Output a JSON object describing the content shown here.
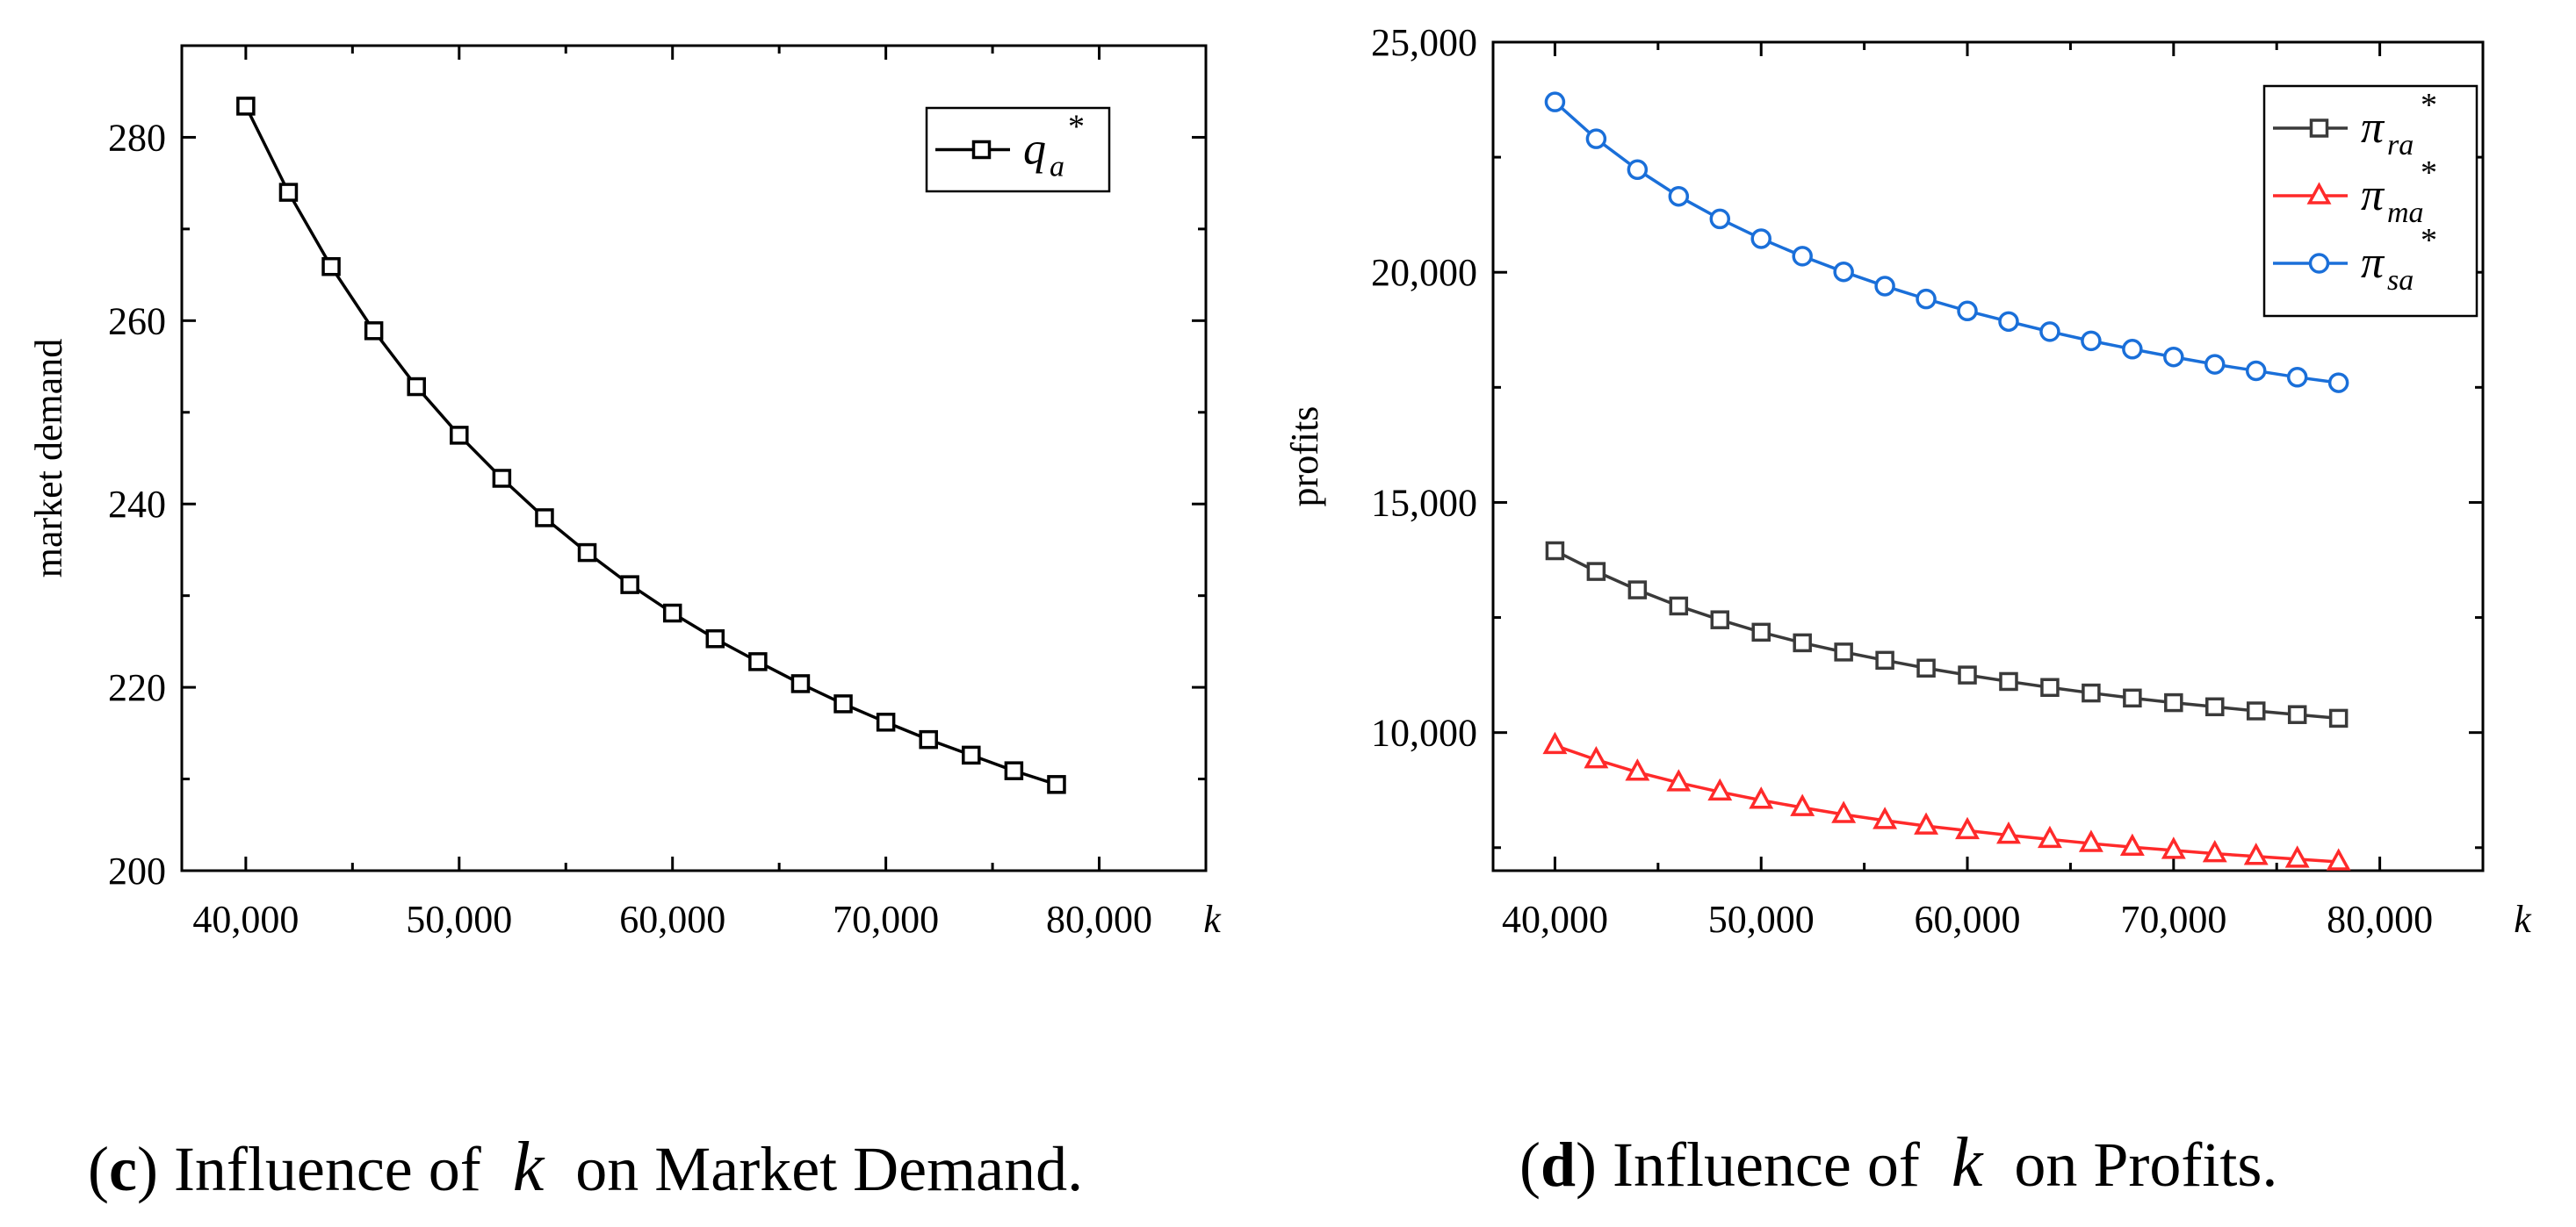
{
  "chart_data": [
    {
      "id": "c",
      "type": "line",
      "title": "",
      "xlabel": "k",
      "ylabel": "market demand",
      "xlim": [
        37000,
        85000
      ],
      "ylim": [
        200,
        290
      ],
      "xticks": [
        40000,
        50000,
        60000,
        70000,
        80000
      ],
      "xtick_labels": [
        "40,000",
        "50,000",
        "60,000",
        "70,000",
        "80,000"
      ],
      "yticks": [
        200,
        220,
        240,
        260,
        280
      ],
      "ytick_labels": [
        "200",
        "220",
        "240",
        "260",
        "280"
      ],
      "legend_position": "top-right",
      "x": [
        40000,
        42000,
        44000,
        46000,
        48000,
        50000,
        52000,
        54000,
        56000,
        58000,
        60000,
        62000,
        64000,
        66000,
        68000,
        70000,
        72000,
        74000,
        76000,
        78000
      ],
      "series": [
        {
          "name": "q_a*",
          "legend_main": "q",
          "legend_sub": "a",
          "legend_sup": "*",
          "color": "#000000",
          "marker": "square",
          "values": [
            283.4,
            274.0,
            265.9,
            258.9,
            252.8,
            247.5,
            242.8,
            238.5,
            234.7,
            231.2,
            228.1,
            225.3,
            222.8,
            220.4,
            218.2,
            216.2,
            214.3,
            212.6,
            210.9,
            209.4
          ]
        }
      ]
    },
    {
      "id": "d",
      "type": "line",
      "title": "",
      "xlabel": "k",
      "ylabel": "profits",
      "xlim": [
        37000,
        85000
      ],
      "ylim": [
        7000,
        25000
      ],
      "xticks": [
        40000,
        50000,
        60000,
        70000,
        80000
      ],
      "xtick_labels": [
        "40,000",
        "50,000",
        "60,000",
        "70,000",
        "80,000"
      ],
      "yticks": [
        10000,
        15000,
        20000,
        25000
      ],
      "ytick_labels": [
        "10,000",
        "15,000",
        "20,000",
        "25,000"
      ],
      "legend_position": "top-right",
      "x": [
        40000,
        42000,
        44000,
        46000,
        48000,
        50000,
        52000,
        54000,
        56000,
        58000,
        60000,
        62000,
        64000,
        66000,
        68000,
        70000,
        72000,
        74000,
        76000,
        78000
      ],
      "series": [
        {
          "name": "π_ra*",
          "legend_main": "π",
          "legend_sub": "ra",
          "legend_sup": "*",
          "color": "#3a3a3a",
          "marker": "square",
          "values": [
            13950,
            13500,
            13100,
            12750,
            12450,
            12180,
            11950,
            11750,
            11570,
            11400,
            11250,
            11110,
            10980,
            10860,
            10750,
            10650,
            10560,
            10470,
            10390,
            10310
          ]
        },
        {
          "name": "π_ma*",
          "legend_main": "π",
          "legend_sub": "ma",
          "legend_sup": "*",
          "color": "#ff2a2a",
          "marker": "triangle",
          "values": [
            9720,
            9410,
            9140,
            8910,
            8710,
            8530,
            8370,
            8220,
            8090,
            7970,
            7870,
            7770,
            7680,
            7590,
            7510,
            7440,
            7370,
            7310,
            7250,
            7190
          ]
        },
        {
          "name": "π_sa*",
          "legend_main": "π",
          "legend_sub": "sa",
          "legend_sup": "*",
          "color": "#1a6fd9",
          "marker": "circle",
          "values": [
            23700,
            22900,
            22230,
            21650,
            21160,
            20730,
            20350,
            20010,
            19700,
            19420,
            19160,
            18930,
            18710,
            18510,
            18330,
            18160,
            18000,
            17860,
            17720,
            17600
          ]
        }
      ]
    }
  ],
  "captions": {
    "c": {
      "letter": "c",
      "pre": "Influence of",
      "var": "k",
      "post": "on Market Demand."
    },
    "d": {
      "letter": "d",
      "pre": "Influence of",
      "var": "k",
      "post": "on Profits."
    }
  }
}
